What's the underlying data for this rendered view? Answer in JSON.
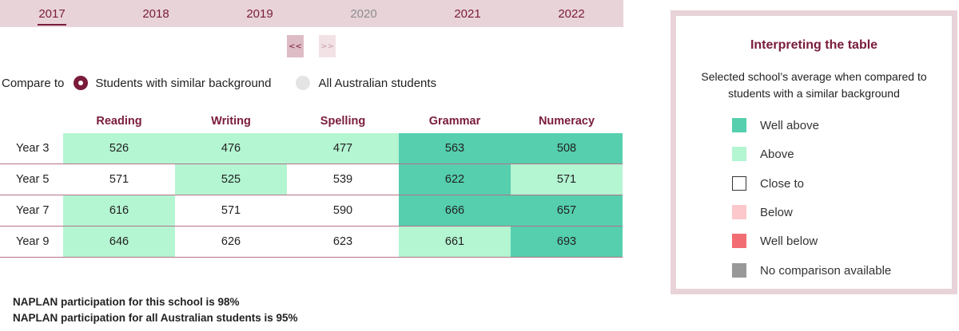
{
  "year_tabs": [
    {
      "label": "2017",
      "state": "active"
    },
    {
      "label": "2018",
      "state": "normal"
    },
    {
      "label": "2019",
      "state": "normal"
    },
    {
      "label": "2020",
      "state": "disabled"
    },
    {
      "label": "2021",
      "state": "normal"
    },
    {
      "label": "2022",
      "state": "normal"
    }
  ],
  "pager": {
    "prev_label": "<<",
    "next_label": ">>"
  },
  "compare": {
    "label": "Compare to",
    "options": [
      {
        "label": "Students with similar background",
        "selected": true
      },
      {
        "label": "All Australian students",
        "selected": false
      }
    ]
  },
  "table": {
    "columns": [
      "Reading",
      "Writing",
      "Spelling",
      "Grammar",
      "Numeracy"
    ],
    "rows": [
      {
        "label": "Year 3",
        "values": [
          "526",
          "476",
          "477",
          "563",
          "508"
        ],
        "ratings": [
          "above",
          "above",
          "above",
          "well_above",
          "well_above"
        ]
      },
      {
        "label": "Year 5",
        "values": [
          "571",
          "525",
          "539",
          "622",
          "571"
        ],
        "ratings": [
          "close",
          "above",
          "close",
          "well_above",
          "above"
        ]
      },
      {
        "label": "Year 7",
        "values": [
          "616",
          "571",
          "590",
          "666",
          "657"
        ],
        "ratings": [
          "above",
          "close",
          "close",
          "well_above",
          "well_above"
        ]
      },
      {
        "label": "Year 9",
        "values": [
          "646",
          "626",
          "623",
          "661",
          "693"
        ],
        "ratings": [
          "above",
          "close",
          "close",
          "above",
          "well_above"
        ]
      }
    ]
  },
  "participation": {
    "school": "NAPLAN participation for this school is 98%",
    "all": "NAPLAN participation for all Australian students is 95%"
  },
  "legend": {
    "title": "Interpreting the table",
    "description": "Selected school’s average when compared to students with a similar background",
    "items": [
      {
        "key": "well_above",
        "label": "Well above",
        "color": "#55cfae"
      },
      {
        "key": "above",
        "label": "Above",
        "color": "#b4f5d2"
      },
      {
        "key": "close",
        "label": "Close to",
        "color": "#ffffff"
      },
      {
        "key": "below",
        "label": "Below",
        "color": "#fcc8cb"
      },
      {
        "key": "well_below",
        "label": "Well below",
        "color": "#f26d73"
      },
      {
        "key": "none",
        "label": "No comparison available",
        "color": "#999999"
      }
    ]
  },
  "colors": {
    "accent": "#7a1c3a",
    "tab_bar": "#e8d3d9",
    "row_border": "#b57287"
  }
}
